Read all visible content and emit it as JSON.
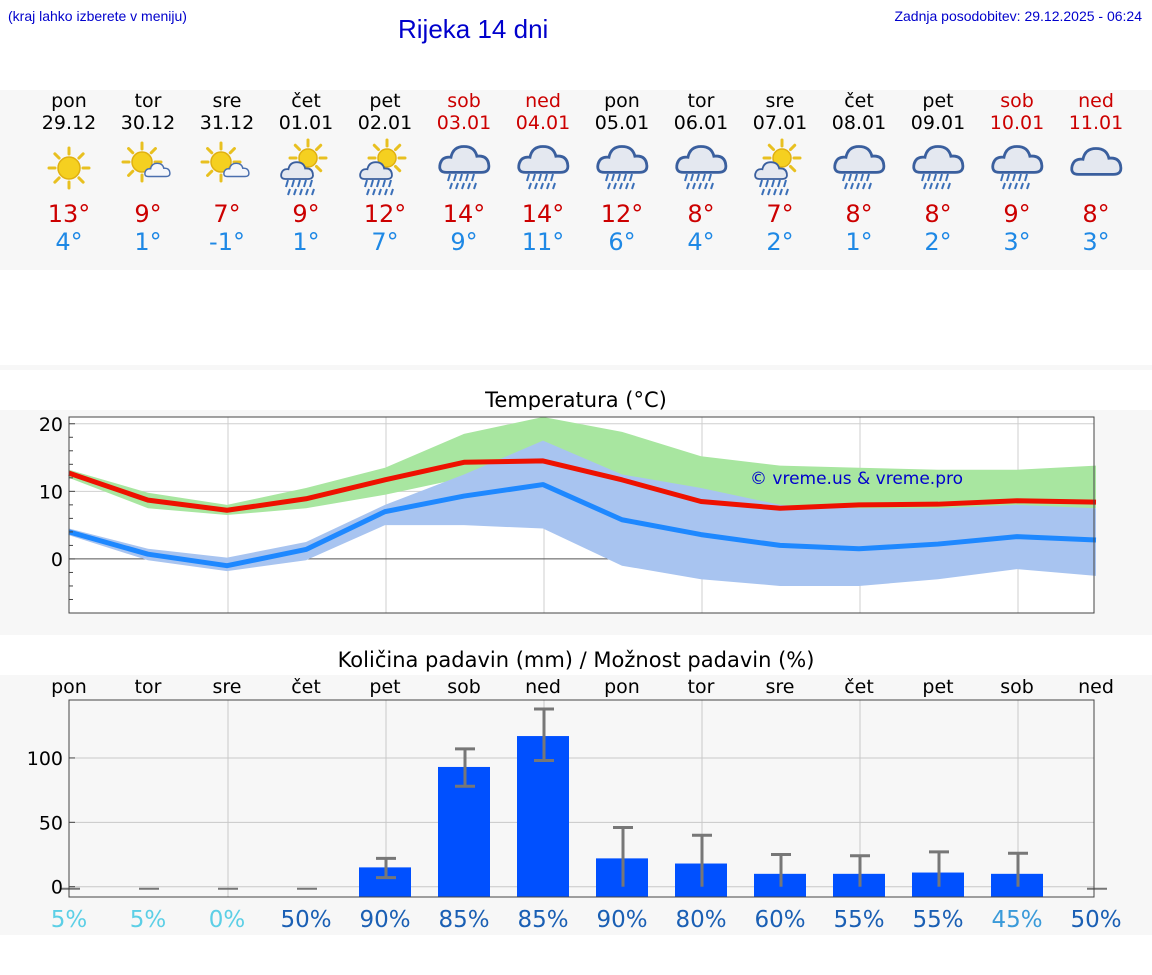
{
  "header": {
    "hint": "(kraj lahko izberete v meniju)",
    "title": "Rijeka 14 dni",
    "updated": "Zadnja posodobitev: 29.12.2025 - 06:24"
  },
  "days": [
    {
      "name": "pon",
      "date": "29.12",
      "max": "13°",
      "min": "4°",
      "icon": "sunny-icon",
      "weekend": false,
      "chance": "5%"
    },
    {
      "name": "tor",
      "date": "30.12",
      "max": "9°",
      "min": "1°",
      "icon": "partly-cloudy-icon",
      "weekend": false,
      "chance": "5%"
    },
    {
      "name": "sre",
      "date": "31.12",
      "max": "7°",
      "min": "-1°",
      "icon": "partly-cloudy-icon",
      "weekend": false,
      "chance": "0%"
    },
    {
      "name": "čet",
      "date": "01.01",
      "max": "9°",
      "min": "1°",
      "icon": "sun-rain-icon",
      "weekend": false,
      "chance": "50%"
    },
    {
      "name": "pet",
      "date": "02.01",
      "max": "12°",
      "min": "7°",
      "icon": "sun-rain-icon",
      "weekend": false,
      "chance": "90%"
    },
    {
      "name": "sob",
      "date": "03.01",
      "max": "14°",
      "min": "9°",
      "icon": "rain-icon",
      "weekend": true,
      "chance": "85%"
    },
    {
      "name": "ned",
      "date": "04.01",
      "max": "14°",
      "min": "11°",
      "icon": "rain-icon",
      "weekend": true,
      "chance": "85%"
    },
    {
      "name": "pon",
      "date": "05.01",
      "max": "12°",
      "min": "6°",
      "icon": "rain-icon",
      "weekend": false,
      "chance": "90%"
    },
    {
      "name": "tor",
      "date": "06.01",
      "max": "8°",
      "min": "4°",
      "icon": "rain-icon",
      "weekend": false,
      "chance": "80%"
    },
    {
      "name": "sre",
      "date": "07.01",
      "max": "7°",
      "min": "2°",
      "icon": "sun-rain-icon",
      "weekend": false,
      "chance": "60%"
    },
    {
      "name": "čet",
      "date": "08.01",
      "max": "8°",
      "min": "1°",
      "icon": "rain-icon",
      "weekend": false,
      "chance": "55%"
    },
    {
      "name": "pet",
      "date": "09.01",
      "max": "8°",
      "min": "2°",
      "icon": "rain-icon",
      "weekend": false,
      "chance": "55%"
    },
    {
      "name": "sob",
      "date": "10.01",
      "max": "9°",
      "min": "3°",
      "icon": "rain-icon",
      "weekend": true,
      "chance": "45%"
    },
    {
      "name": "ned",
      "date": "11.01",
      "max": "8°",
      "min": "3°",
      "icon": "cloudy-icon",
      "weekend": true,
      "chance": "50%"
    }
  ],
  "colors": {
    "max_line": "#ee1100",
    "min_line": "#1e88ff",
    "max_band": "#a8e6a0",
    "min_band": "#a8c4f0",
    "overlap_band": "#7fc7a5",
    "bar": "#0050ff",
    "weekend_text": "#cc0000",
    "title_blue": "#0000cc"
  },
  "chart_data": [
    {
      "type": "line",
      "title": "Temperatura (°C)",
      "watermark": "© vreme.us & vreme.pro",
      "x": [
        "29.12",
        "30.12",
        "31.12",
        "01.01",
        "02.01",
        "03.01",
        "04.01",
        "05.01",
        "06.01",
        "07.01",
        "08.01",
        "09.01",
        "10.01",
        "11.01"
      ],
      "ylim": [
        -8,
        21
      ],
      "yticks": [
        0,
        10,
        20
      ],
      "series": [
        {
          "name": "max",
          "values": [
            12.7,
            8.7,
            7.2,
            8.9,
            11.7,
            14.3,
            14.5,
            11.7,
            8.5,
            7.5,
            8.0,
            8.1,
            8.6,
            8.4
          ]
        },
        {
          "name": "min",
          "values": [
            4.0,
            0.7,
            -1.0,
            1.4,
            7.0,
            9.3,
            11.0,
            5.8,
            3.6,
            2.0,
            1.5,
            2.2,
            3.3,
            2.8
          ]
        },
        {
          "name": "max_band_upper",
          "values": [
            13.2,
            9.8,
            8.0,
            10.5,
            13.5,
            18.5,
            21.0,
            18.8,
            15.2,
            13.8,
            13.5,
            13.2,
            13.2,
            13.8
          ]
        },
        {
          "name": "max_band_lower",
          "values": [
            12.0,
            7.5,
            6.5,
            7.5,
            9.5,
            12.0,
            12.0,
            9.5,
            6.0,
            6.0,
            7.0,
            7.0,
            7.5,
            7.5
          ]
        },
        {
          "name": "min_band_upper",
          "values": [
            4.5,
            1.5,
            0.2,
            2.5,
            8.0,
            12.5,
            17.5,
            12.5,
            10.5,
            8.0,
            7.5,
            7.5,
            8.0,
            7.5
          ]
        },
        {
          "name": "min_band_lower",
          "values": [
            3.5,
            -0.2,
            -1.8,
            -0.2,
            5.0,
            5.0,
            4.5,
            -1.0,
            -3.0,
            -4.0,
            -4.0,
            -3.0,
            -1.5,
            -2.5
          ]
        }
      ]
    },
    {
      "type": "bar",
      "title": "Količina padavin (mm) / Možnost padavin (%)",
      "categories": [
        "pon",
        "tor",
        "sre",
        "čet",
        "pet",
        "sob",
        "ned",
        "pon",
        "tor",
        "sre",
        "čet",
        "pet",
        "sob",
        "ned"
      ],
      "values": [
        0,
        0,
        0,
        0,
        15,
        93,
        117,
        22,
        18,
        10,
        10,
        11,
        10,
        0
      ],
      "error_low": [
        0,
        0,
        0,
        0,
        7,
        78,
        98,
        0,
        0,
        0,
        0,
        0,
        0,
        0
      ],
      "error_high": [
        0,
        0,
        0,
        0,
        22,
        107,
        138,
        46,
        40,
        25,
        24,
        27,
        26,
        0
      ],
      "ylim": [
        -8,
        145
      ],
      "yticks": [
        0,
        50,
        100
      ],
      "chance": [
        "5%",
        "5%",
        "0%",
        "50%",
        "90%",
        "85%",
        "85%",
        "90%",
        "80%",
        "60%",
        "55%",
        "55%",
        "45%",
        "50%"
      ]
    }
  ]
}
